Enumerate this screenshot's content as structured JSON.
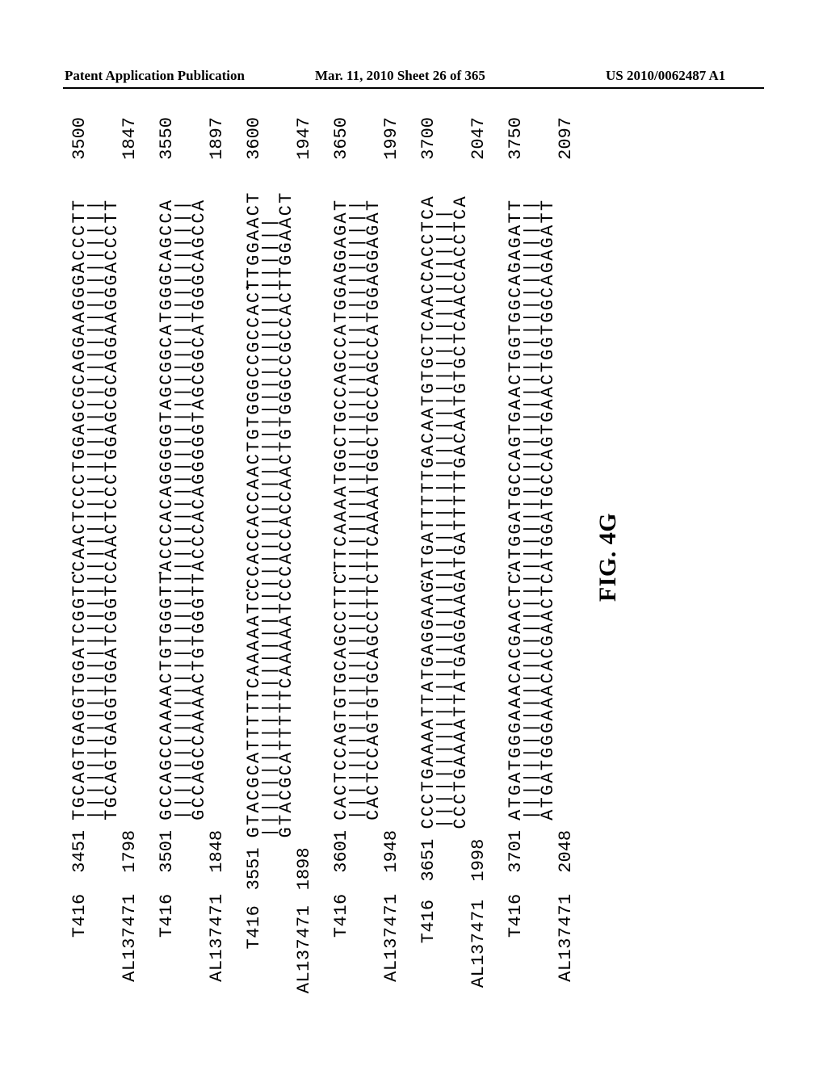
{
  "header": {
    "left": "Patent Application Publication",
    "center": "Mar. 11, 2010  Sheet 26 of 365",
    "right": "US 2010/0062487 A1"
  },
  "figure_label": "FIG. 4G",
  "labels": {
    "top": "T416",
    "bottom": "AL137471"
  },
  "dot_positions_ch": [
    20,
    45
  ],
  "blocks": [
    {
      "start_top": "3451",
      "end_top": "3500",
      "start_bot": "1798",
      "end_bot": "1847",
      "seq_top": "TGCAGTGAGGTGGATCGGTCCAACTCCCTGGAGCGCAGGAAGGGACCCTT",
      "match": "||||||||||||||||||||||||||||||||||||||||||||||||||",
      "seq_bot": "TGCAGTGAGGTGGATCGGTCCAACTCCCTGGAGCGCAGGAAGGGACCCTT"
    },
    {
      "start_top": "3501",
      "end_top": "3550",
      "start_bot": "1848",
      "end_bot": "1897",
      "seq_top": "GCCAGCCAAAACTGTGGGTTACCCACAGGGGGTAGCGGCATGGGCAGCCA",
      "match": "||||||||||||||||||||||||||||||||||||||||||||||||||",
      "seq_bot": "GCCAGCCAAAACTGTGGGTTACCCACAGGGGGTAGCGGCATGGGCAGCCA"
    },
    {
      "start_top": "3551",
      "end_top": "3600",
      "start_bot": "1898",
      "end_bot": "1947",
      "seq_top": "GTACGCATTTTTCAAAAATCCCACCACCAACTGTGGGCCGCCACTTGGAACT",
      "match": "||||||||||||||||||||||||||||||||||||||||||||||||||",
      "seq_bot": "GTACGCATTTTTCAAAAATCCCACCACCAACTGTGGGCCGCCACTTGGAACT"
    },
    {
      "start_top": "3601",
      "end_top": "3650",
      "start_bot": "1948",
      "end_bot": "1997",
      "seq_top": "CACTCCAGTGTGCAGCCTTCTTCAAAATGGCTGCCAGCCATGGAGGAGAT",
      "match": "||||||||||||||||||||||||||||||||||||||||||||||||||",
      "seq_bot": "CACTCCAGTGTGCAGCCTTCTTCAAAATGGCTGCCAGCCATGGAGGAGAT"
    },
    {
      "start_top": "3651",
      "end_top": "3700",
      "start_bot": "1998",
      "end_bot": "2047",
      "seq_top": "CCCTGAAAATTATGAGGAAGATGATTTTTGACAATGTGCTCAACCACCTCA",
      "match": "||||||||||||||||||||||||||||||||||||||||||||||||||",
      "seq_bot": "CCCTGAAAATTATGAGGAAGATGATTTTTGACAATGTGCTCAACCACCTCA"
    },
    {
      "start_top": "3701",
      "end_top": "3750",
      "start_bot": "2048",
      "end_bot": "2097",
      "seq_top": "ATGATGGGAAACACGAACTCATGGATGCCAGTGAACTGGTGGCAGAGATT",
      "match": "||||||||||||||||||||||||||||||||||||||||||||||||||",
      "seq_bot": "ATGATGGGAAACACGAACTCATGGATGCCAGTGAACTGGTGGCAGAGATT"
    }
  ]
}
